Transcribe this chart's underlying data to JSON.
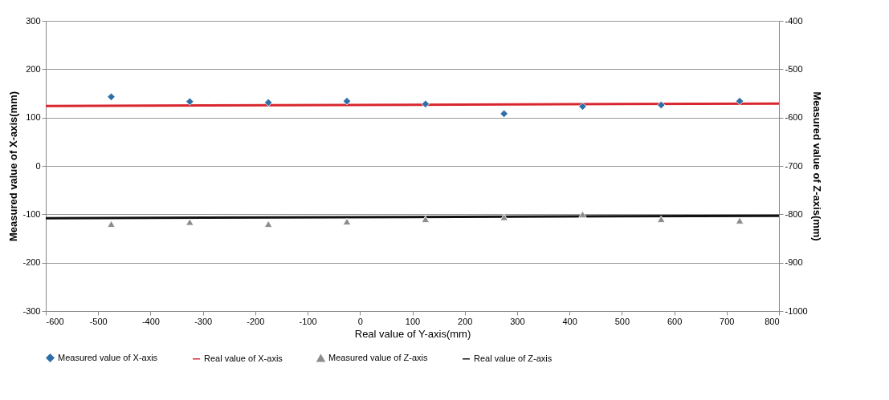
{
  "chart_data": {
    "type": "scatter",
    "xlabel": "Real value of Y-axis(mm)",
    "ylabel": "Measured value of X-axis(mm)",
    "y2label": "Measured value of Z-axis(mm)",
    "xlim": [
      -600,
      800
    ],
    "xticks": [
      -600,
      -500,
      -400,
      -300,
      -200,
      -100,
      0,
      100,
      200,
      300,
      400,
      500,
      600,
      700,
      800
    ],
    "ylim": [
      -300,
      300
    ],
    "yticks": [
      -300,
      -200,
      -100,
      0,
      100,
      200,
      300
    ],
    "y2lim": [
      -1000,
      -400
    ],
    "y2ticks": [
      -1000,
      -900,
      -800,
      -700,
      -600,
      -500,
      -400
    ],
    "grid": "y",
    "legend": "bottom",
    "series": [
      {
        "name": "Measured value of X-axis",
        "marker": "diamond",
        "color": "#2e6fa7",
        "x": [
          -475,
          -325,
          -175,
          -25,
          125,
          275,
          425,
          575,
          725
        ],
        "values": [
          143,
          133,
          131,
          134,
          128,
          108,
          123,
          126,
          134
        ]
      },
      {
        "name": "Real value of X-axis",
        "type": "line",
        "color": "#d9262e",
        "x": [
          -600,
          800
        ],
        "values": [
          124,
          129
        ]
      },
      {
        "name": "Measured value of Z-axis",
        "marker": "triangle",
        "axis": "y2",
        "color": "#8c8c8c",
        "x": [
          -475,
          -325,
          -175,
          -25,
          125,
          275,
          425,
          575,
          725
        ],
        "values": [
          -820,
          -816,
          -820,
          -815,
          -810,
          -806,
          -800,
          -810,
          -813
        ]
      },
      {
        "name": "Real value of Z-axis",
        "type": "line",
        "axis": "y2",
        "color": "#111111",
        "x": [
          -600,
          800
        ],
        "values": [
          -808,
          -803
        ]
      }
    ]
  }
}
